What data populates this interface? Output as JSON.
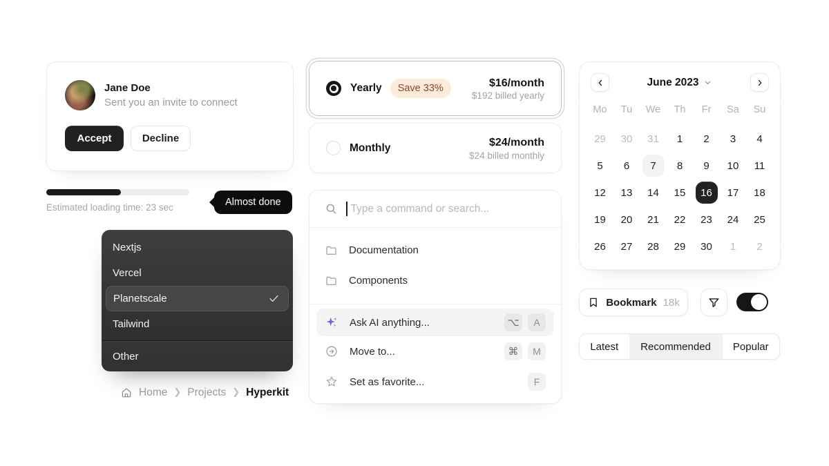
{
  "invite_card": {
    "name": "Jane Doe",
    "message": "Sent you an invite to connect",
    "accept_label": "Accept",
    "decline_label": "Decline"
  },
  "progress": {
    "percent": 52,
    "label": "Estimated loading time: 23 sec",
    "tooltip": "Almost done"
  },
  "dropdown": {
    "items": [
      {
        "label": "Nextjs"
      },
      {
        "label": "Vercel"
      },
      {
        "label": "Planetscale",
        "selected": true
      },
      {
        "label": "Tailwind"
      },
      {
        "label": "Other"
      }
    ]
  },
  "breadcrumb": {
    "items": [
      "Home",
      "Projects",
      "Hyperkit"
    ]
  },
  "pricing": {
    "yearly": {
      "label": "Yearly",
      "badge": "Save 33%",
      "price": "$16/month",
      "billed": "$192 billed yearly",
      "selected": true
    },
    "monthly": {
      "label": "Monthly",
      "price": "$24/month",
      "billed": "$24 billed monthly",
      "selected": false
    }
  },
  "command_palette": {
    "placeholder": "Type a command or search...",
    "items": [
      {
        "label": "Documentation",
        "icon": "folder-icon"
      },
      {
        "label": "Components",
        "icon": "folder-icon"
      }
    ],
    "actions": [
      {
        "label": "Ask AI anything...",
        "icon": "sparkle-icon",
        "keys": [
          "⌥",
          "A"
        ],
        "highlighted": true
      },
      {
        "label": "Move to...",
        "icon": "move-icon",
        "keys": [
          "⌘",
          "M"
        ],
        "highlighted": false
      },
      {
        "label": "Set as favorite...",
        "icon": "star-icon",
        "keys": [
          "F"
        ],
        "highlighted": false
      }
    ]
  },
  "calendar": {
    "title": "June 2023",
    "weekdays": [
      "Mo",
      "Tu",
      "We",
      "Th",
      "Fr",
      "Sa",
      "Su"
    ],
    "selected_day": "16",
    "today_day": "7",
    "days": [
      {
        "d": "29",
        "cls": "muted"
      },
      {
        "d": "30",
        "cls": "muted"
      },
      {
        "d": "31",
        "cls": "muted"
      },
      {
        "d": "1"
      },
      {
        "d": "2"
      },
      {
        "d": "3"
      },
      {
        "d": "4"
      },
      {
        "d": "5"
      },
      {
        "d": "6"
      },
      {
        "d": "7",
        "cls": "today"
      },
      {
        "d": "8"
      },
      {
        "d": "9"
      },
      {
        "d": "10"
      },
      {
        "d": "11"
      },
      {
        "d": "12"
      },
      {
        "d": "13"
      },
      {
        "d": "14"
      },
      {
        "d": "15"
      },
      {
        "d": "16",
        "cls": "selected"
      },
      {
        "d": "17"
      },
      {
        "d": "18"
      },
      {
        "d": "19"
      },
      {
        "d": "20"
      },
      {
        "d": "21"
      },
      {
        "d": "22"
      },
      {
        "d": "23"
      },
      {
        "d": "24"
      },
      {
        "d": "25"
      },
      {
        "d": "26"
      },
      {
        "d": "27"
      },
      {
        "d": "28"
      },
      {
        "d": "29"
      },
      {
        "d": "30"
      },
      {
        "d": "1",
        "cls": "muted"
      },
      {
        "d": "2",
        "cls": "muted"
      }
    ]
  },
  "actions_bar": {
    "bookmark_label": "Bookmark",
    "bookmark_count": "18k",
    "toggle_on": true
  },
  "tabs": {
    "items": [
      "Latest",
      "Recommended",
      "Popular"
    ],
    "selected": "Recommended"
  },
  "colors": {
    "accent_dark": "#1c1c1c",
    "badge_bg": "#fcecd9",
    "badge_text": "#97402a",
    "ai_purple": "#7c5cf0",
    "row_highlight": "#f4f4f4",
    "calendar_selected_bg": "#222222",
    "menu_bg": "#333333"
  }
}
